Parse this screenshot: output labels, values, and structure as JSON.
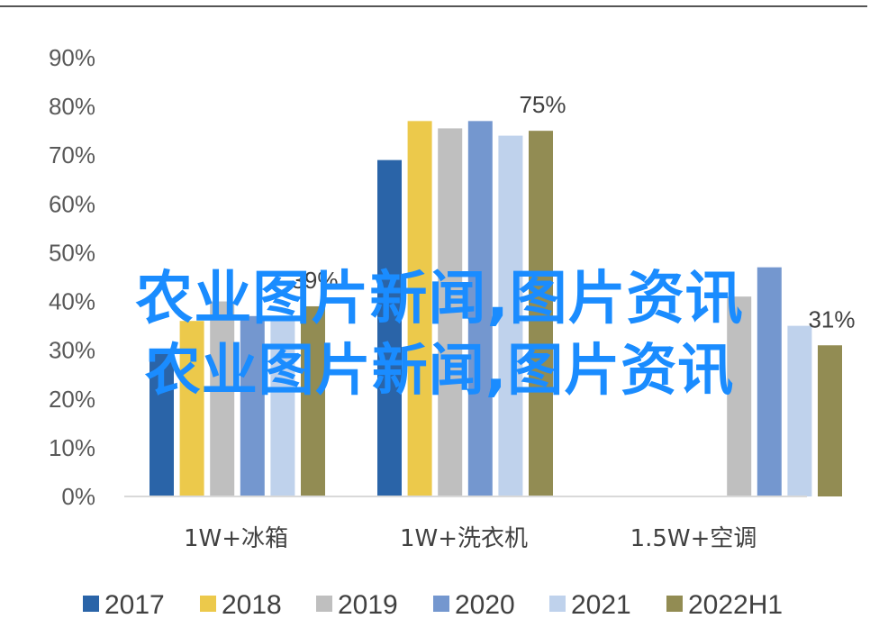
{
  "watermark": {
    "line1": "农业图片新闻,图片资讯",
    "line2": "农业图片新闻,图片资讯"
  },
  "chart_data": {
    "type": "bar",
    "categories": [
      "1W+冰箱",
      "1W+洗衣机",
      "1.5W+空调"
    ],
    "series": [
      {
        "name": "2017",
        "color": "#2a64a8",
        "values": [
          30,
          69,
          null
        ]
      },
      {
        "name": "2018",
        "color": "#ecc94b",
        "values": [
          36,
          77,
          null
        ]
      },
      {
        "name": "2019",
        "color": "#bfbfbf",
        "values": [
          40,
          75.5,
          41
        ]
      },
      {
        "name": "2020",
        "color": "#7497cf",
        "values": [
          37,
          77,
          47
        ]
      },
      {
        "name": "2021",
        "color": "#bfd2ec",
        "values": [
          36,
          74,
          35
        ]
      },
      {
        "name": "2022H1",
        "color": "#928c53",
        "values": [
          39,
          75,
          31
        ]
      }
    ],
    "data_labels": [
      {
        "text": "39%",
        "category": 0,
        "series": 5
      },
      {
        "text": "75%",
        "category": 1,
        "series": 5
      },
      {
        "text": "31%",
        "category": 2,
        "series": 5
      }
    ],
    "y_ticks": [
      "0%",
      "10%",
      "20%",
      "30%",
      "40%",
      "50%",
      "60%",
      "70%",
      "80%",
      "90%"
    ],
    "ylim": [
      0,
      90
    ],
    "legend_position": "bottom",
    "grid": false
  }
}
